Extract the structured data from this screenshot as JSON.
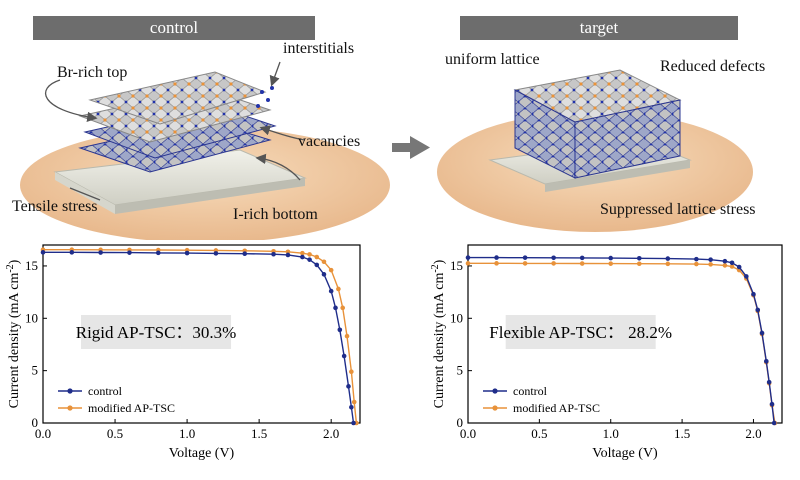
{
  "top": {
    "left_banner": "control",
    "right_banner": "target",
    "left_labels": {
      "br_rich_top": "Br-rich top",
      "interstitials": "interstitials",
      "vacancies": "vacancies",
      "tensile_stress": "Tensile stress",
      "i_rich_bottom": "I-rich bottom"
    },
    "right_labels": {
      "uniform_lattice": "uniform lattice",
      "reduced_defects": "Reduced defects",
      "suppressed_lattice_stress": "Suppressed lattice stress"
    }
  },
  "colors": {
    "control": "#1f2d8a",
    "modified": "#e8923a",
    "banner": "#6d6d6d",
    "disc": "#f0c9a0",
    "substrate": "#e4e4dc",
    "crystal": "#bdbdbd",
    "atom_orange": "#e8923a",
    "atom_blue": "#2233aa"
  },
  "chart_data": [
    {
      "type": "line",
      "annotation": "Rigid AP-TSC：30.3%",
      "xlabel": "Voltage (V)",
      "ylabel": "Current density (mA cm",
      "ylabel_sup": "-2",
      "ylabel_end": ")",
      "xlim": [
        0.0,
        2.2
      ],
      "ylim": [
        0,
        17
      ],
      "xticks": [
        "0.0",
        "0.5",
        "1.0",
        "1.5",
        "2.0"
      ],
      "yticks": [
        "0",
        "5",
        "10",
        "15"
      ],
      "legend": [
        "control",
        "modified AP-TSC"
      ],
      "series": [
        {
          "name": "control",
          "x": [
            0.0,
            0.2,
            0.4,
            0.6,
            0.8,
            1.0,
            1.2,
            1.4,
            1.6,
            1.7,
            1.8,
            1.85,
            1.9,
            1.95,
            2.0,
            2.03,
            2.06,
            2.09,
            2.12,
            2.14,
            2.155
          ],
          "y": [
            16.3,
            16.3,
            16.28,
            16.27,
            16.25,
            16.23,
            16.2,
            16.17,
            16.12,
            16.05,
            15.85,
            15.6,
            15.1,
            14.2,
            12.6,
            11.0,
            8.9,
            6.4,
            3.5,
            1.5,
            0.0
          ]
        },
        {
          "name": "modified AP-TSC",
          "x": [
            0.0,
            0.2,
            0.4,
            0.6,
            0.8,
            1.0,
            1.2,
            1.4,
            1.6,
            1.7,
            1.8,
            1.85,
            1.9,
            1.95,
            2.0,
            2.05,
            2.08,
            2.11,
            2.14,
            2.16,
            2.175
          ],
          "y": [
            16.55,
            16.55,
            16.54,
            16.53,
            16.52,
            16.5,
            16.48,
            16.45,
            16.4,
            16.35,
            16.22,
            16.1,
            15.85,
            15.4,
            14.6,
            12.8,
            11.0,
            8.3,
            4.9,
            2.0,
            0.0
          ]
        }
      ]
    },
    {
      "type": "line",
      "annotation": "Flexible AP-TSC： 28.2%",
      "xlabel": "Voltage (V)",
      "ylabel": "Current density (mA cm",
      "ylabel_sup": "-2",
      "ylabel_end": ")",
      "xlim": [
        0.0,
        2.2
      ],
      "ylim": [
        0,
        17
      ],
      "xticks": [
        "0.0",
        "0.5",
        "1.0",
        "1.5",
        "2.0"
      ],
      "yticks": [
        "0",
        "5",
        "10",
        "15"
      ],
      "legend": [
        "control",
        "modified AP-TSC"
      ],
      "series": [
        {
          "name": "control",
          "x": [
            0.0,
            0.2,
            0.4,
            0.6,
            0.8,
            1.0,
            1.2,
            1.4,
            1.6,
            1.7,
            1.8,
            1.85,
            1.9,
            1.95,
            2.0,
            2.03,
            2.06,
            2.09,
            2.11,
            2.13,
            2.145
          ],
          "y": [
            15.8,
            15.8,
            15.79,
            15.78,
            15.77,
            15.75,
            15.73,
            15.7,
            15.65,
            15.6,
            15.45,
            15.3,
            14.9,
            14.0,
            12.3,
            10.8,
            8.6,
            5.9,
            3.9,
            1.8,
            0.0
          ]
        },
        {
          "name": "modified AP-TSC",
          "x": [
            0.0,
            0.2,
            0.4,
            0.6,
            0.8,
            1.0,
            1.2,
            1.4,
            1.6,
            1.7,
            1.8,
            1.85,
            1.9,
            1.95,
            2.0,
            2.03,
            2.06,
            2.09,
            2.11,
            2.13,
            2.15
          ],
          "y": [
            15.25,
            15.25,
            15.24,
            15.24,
            15.23,
            15.22,
            15.21,
            15.2,
            15.18,
            15.15,
            15.05,
            14.95,
            14.6,
            13.8,
            12.2,
            10.7,
            8.5,
            5.8,
            3.8,
            1.7,
            0.0
          ]
        }
      ]
    }
  ]
}
